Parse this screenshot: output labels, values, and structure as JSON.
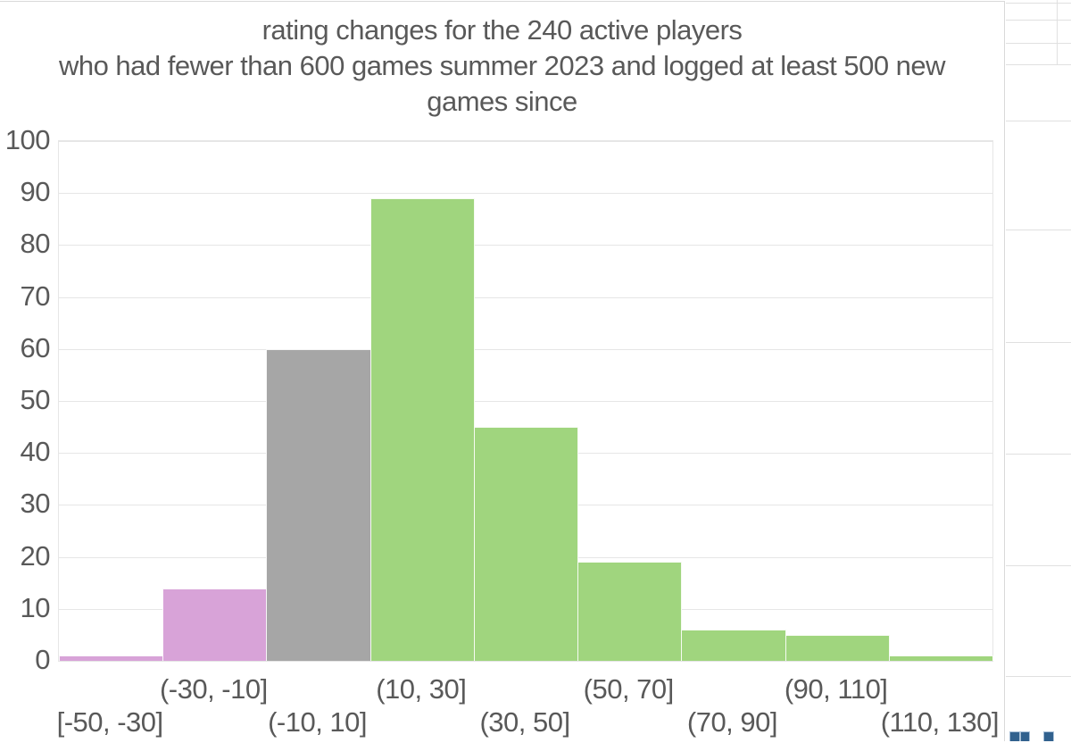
{
  "chart_data": {
    "type": "bar",
    "subtype": "histogram",
    "title_lines": [
      "rating changes for the 240 active players",
      "who had fewer than 600 games summer 2023 and logged at least 500 new",
      "games since"
    ],
    "title": "rating changes for the 240 active players who had fewer than 600 games summer 2023 and logged at least 500 new games since",
    "categories": [
      "[-50, -30]",
      "(-30, -10]",
      "(-10, 10]",
      "(10, 30]",
      "(30, 50]",
      "(50, 70]",
      "(70, 90]",
      "(90, 110]",
      "(110, 130]"
    ],
    "values": [
      1,
      14,
      60,
      89,
      45,
      19,
      6,
      5,
      1
    ],
    "bar_colors": [
      "#d8a3d8",
      "#d8a3d8",
      "#a6a6a6",
      "#a0d57e",
      "#a0d57e",
      "#a0d57e",
      "#a0d57e",
      "#a0d57e",
      "#a0d57e"
    ],
    "xlabel": "",
    "ylabel": "",
    "ylim": [
      0,
      100
    ],
    "y_ticks": [
      0,
      10,
      20,
      30,
      40,
      50,
      60,
      70,
      80,
      90,
      100
    ],
    "grid": true,
    "legend": false,
    "gap_width_pct": 0
  },
  "colors": {
    "title_text": "#595959",
    "axis_text": "#595959",
    "gridline": "#e6e6e6",
    "chart_border": "#d9d9d9",
    "sheet_gridline": "#e0e0e0",
    "mini_chart_bar": "#31618e",
    "bin_negative": "#d8a3d8",
    "bin_neutral": "#a6a6a6",
    "bin_positive": "#a0d57e"
  },
  "sheet": {
    "mini_chart_bars_visible": 3
  }
}
